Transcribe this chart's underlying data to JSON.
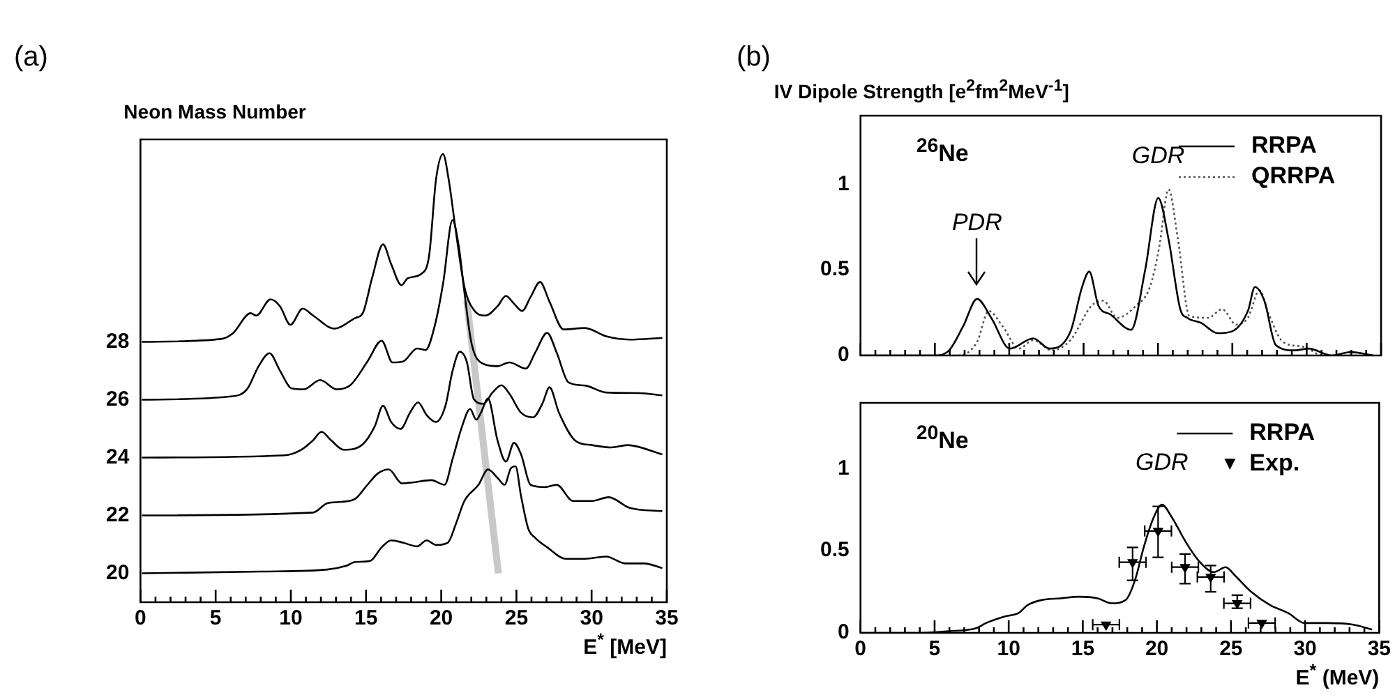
{
  "chart_data": [
    {
      "type": "line",
      "title": "(a)",
      "ylabel": "Neon Mass Number",
      "xlabel": "E$^{*}$ [MeV]",
      "xlim": [
        0,
        35
      ],
      "ylim": [
        19,
        35
      ],
      "xticks": [
        0,
        {
          "value": 1,
          "label": null
        },
        {
          "value": 2,
          "label": null
        },
        {
          "value": 3,
          "label": null
        },
        {
          "value": 4,
          "label": null
        },
        5,
        {
          "value": 6,
          "label": null
        },
        {
          "value": 7,
          "label": null
        },
        {
          "value": 8,
          "label": null
        },
        {
          "value": 9,
          "label": null
        },
        10,
        {
          "value": 11,
          "label": null
        },
        {
          "value": 12,
          "label": null
        },
        {
          "value": 13,
          "label": null
        },
        {
          "value": 14,
          "label": null
        },
        15,
        {
          "value": 16,
          "label": null
        },
        {
          "value": 17,
          "label": null
        },
        {
          "value": 18,
          "label": null
        },
        {
          "value": 19,
          "label": null
        },
        20,
        {
          "value": 21,
          "label": null
        },
        {
          "value": 22,
          "label": null
        },
        {
          "value": 23,
          "label": null
        },
        {
          "value": 24,
          "label": null
        },
        25,
        {
          "value": 26,
          "label": null
        },
        {
          "value": 27,
          "label": null
        },
        {
          "value": 28,
          "label": null
        },
        {
          "value": 29,
          "label": null
        },
        30,
        {
          "value": 31,
          "label": null
        },
        {
          "value": 32,
          "label": null
        },
        {
          "value": 33,
          "label": null
        },
        {
          "value": 34,
          "label": null
        },
        35
      ],
      "yticks": [
        20,
        22,
        24,
        26,
        28
      ],
      "grid": false,
      "legend": false,
      "series": [
        {
          "color": "#000000",
          "x": [
            0.1,
            5.35,
            6.13,
            7.33,
            7.7,
            8.65,
            9.28,
            9.97,
            10.79,
            11.48,
            12.9,
            14.3,
            14.78,
            15.4,
            16.13,
            16.67,
            17.36,
            17.77,
            18.7,
            19.2,
            19.65,
            20.12,
            20.5,
            20.97,
            21.54,
            22.17,
            22.95,
            23.74,
            24.3,
            24.84,
            25.38,
            25.94,
            26.57,
            27.2,
            28.14,
            29.56,
            30.97,
            32.54,
            34.7
          ],
          "values": [
            28.0,
            28.1,
            28.29,
            28.99,
            28.91,
            29.47,
            29.23,
            28.59,
            29.15,
            28.91,
            28.46,
            28.83,
            28.99,
            30.2,
            31.37,
            30.69,
            29.96,
            30.2,
            30.36,
            31.0,
            33.6,
            34.49,
            33.6,
            31.83,
            29.9,
            29.1,
            28.91,
            29.23,
            29.59,
            29.32,
            29.07,
            29.55,
            30.07,
            29.39,
            28.43,
            28.48,
            28.19,
            28.08,
            28.14
          ]
        },
        {
          "color": "#000000",
          "x": [
            0.1,
            6.13,
            7.08,
            7.86,
            8.58,
            9.28,
            10.06,
            10.85,
            11.95,
            13.05,
            13.99,
            15.09,
            16.04,
            16.76,
            17.45,
            18.4,
            18.96,
            19.59,
            20.13,
            20.75,
            21.16,
            21.54,
            22.01,
            22.8,
            23.74,
            24.53,
            25.63,
            26.26,
            27.04,
            27.67,
            28.46,
            29.56,
            30.97,
            33.17,
            34.7
          ],
          "values": [
            26.0,
            26.12,
            26.36,
            27.16,
            27.61,
            27.0,
            26.39,
            26.36,
            26.68,
            26.36,
            26.52,
            27.32,
            28.04,
            27.29,
            27.32,
            27.77,
            27.72,
            28.6,
            30.04,
            32.21,
            31.33,
            29.72,
            27.96,
            27.24,
            27.16,
            27.29,
            27.08,
            27.64,
            28.31,
            27.64,
            26.6,
            26.49,
            26.25,
            26.23,
            26.15
          ]
        },
        {
          "color": "#000000",
          "x": [
            0.1,
            9.59,
            10.69,
            11.48,
            12.04,
            12.67,
            13.52,
            14.78,
            15.57,
            16.13,
            16.67,
            17.3,
            17.92,
            18.46,
            19.03,
            19.65,
            20.28,
            20.75,
            21.23,
            21.7,
            22.17,
            22.8,
            23.43,
            24.0,
            24.53,
            25.31,
            26.1,
            26.73,
            27.2,
            27.83,
            28.93,
            30.03,
            31.29,
            32.39,
            34.7
          ],
          "values": [
            24.0,
            24.08,
            24.27,
            24.6,
            24.89,
            24.6,
            24.27,
            24.46,
            25.07,
            25.79,
            25.23,
            24.99,
            25.55,
            25.91,
            25.47,
            25.23,
            25.79,
            26.99,
            27.66,
            27.31,
            26.02,
            25.86,
            26.26,
            26.5,
            26.21,
            25.55,
            25.39,
            25.87,
            26.43,
            25.55,
            24.58,
            24.43,
            24.35,
            24.43,
            24.11
          ]
        },
        {
          "color": "#000000",
          "x": [
            0.1,
            11.48,
            12.42,
            13.36,
            14.3,
            15.09,
            15.81,
            16.51,
            17.39,
            18.08,
            19.34,
            20.22,
            20.75,
            21.38,
            21.92,
            22.33,
            22.64,
            23.11,
            23.74,
            24.3,
            24.84,
            25.31,
            25.94,
            26.89,
            27.67,
            28.77,
            30.03,
            31.13,
            32.54,
            34.7
          ],
          "values": [
            22.0,
            22.1,
            22.42,
            22.47,
            22.58,
            23.06,
            23.46,
            23.59,
            23.11,
            23.14,
            23.22,
            23.06,
            23.94,
            25.07,
            25.68,
            25.31,
            25.55,
            26.04,
            24.6,
            23.86,
            24.51,
            24.11,
            23.06,
            22.98,
            23.06,
            22.5,
            22.5,
            22.63,
            22.26,
            22.15
          ]
        },
        {
          "color": "#000000",
          "x": [
            0.1,
            8.02,
            12.42,
            13.68,
            14.3,
            15.25,
            16.04,
            16.67,
            17.45,
            18.4,
            19.03,
            19.65,
            20.44,
            20.97,
            21.54,
            22.48,
            23.11,
            23.74,
            24.21,
            24.62,
            24.94,
            25.31,
            25.79,
            26.26,
            27.04,
            28.3,
            29.56,
            30.97,
            32.23,
            33.49,
            34.7
          ],
          "values": [
            20.0,
            20.06,
            20.13,
            20.26,
            20.39,
            20.42,
            20.9,
            21.14,
            21.06,
            20.93,
            21.14,
            20.98,
            21.06,
            21.7,
            22.5,
            23.06,
            23.59,
            23.3,
            23.06,
            23.62,
            23.7,
            22.66,
            21.54,
            21.22,
            20.9,
            20.5,
            20.5,
            20.58,
            20.34,
            20.34,
            20.18
          ]
        },
        {
          "color": "#c8c8c8",
          "x": [
            21.7,
            23.8
          ],
          "values": [
            29.42,
            20.0
          ]
        }
      ]
    },
    {
      "type": "line",
      "title": "(b)",
      "ylabel": "IV Dipole Strength [e$^{2}$fm$^{2}$MeV$^{-1}$]",
      "xlim": [
        0,
        35
      ],
      "ylim": [
        0,
        1.4
      ],
      "tick_labels": "y",
      "xticks": [
        0,
        {
          "value": 1,
          "label": null
        },
        {
          "value": 2,
          "label": null
        },
        {
          "value": 3,
          "label": null
        },
        {
          "value": 4,
          "label": null
        },
        5,
        {
          "value": 6,
          "label": null
        },
        {
          "value": 7,
          "label": null
        },
        {
          "value": 8,
          "label": null
        },
        {
          "value": 9,
          "label": null
        },
        10,
        {
          "value": 11,
          "label": null
        },
        {
          "value": 12,
          "label": null
        },
        {
          "value": 13,
          "label": null
        },
        {
          "value": 14,
          "label": null
        },
        15,
        {
          "value": 16,
          "label": null
        },
        {
          "value": 17,
          "label": null
        },
        {
          "value": 18,
          "label": null
        },
        {
          "value": 19,
          "label": null
        },
        20,
        {
          "value": 21,
          "label": null
        },
        {
          "value": 22,
          "label": null
        },
        {
          "value": 23,
          "label": null
        },
        {
          "value": 24,
          "label": null
        },
        25,
        {
          "value": 26,
          "label": null
        },
        {
          "value": 27,
          "label": null
        },
        {
          "value": 28,
          "label": null
        },
        {
          "value": 29,
          "label": null
        },
        30,
        {
          "value": 31,
          "label": null
        },
        {
          "value": 32,
          "label": null
        },
        {
          "value": 33,
          "label": null
        },
        {
          "value": 34,
          "label": null
        },
        35
      ],
      "yticks": [
        0,
        0.5,
        1
      ],
      "grid": false,
      "legend": "top right",
      "annotations": [
        "$^{26}$Ne",
        {
          "text": "PDR",
          "x": 7.84,
          "y": 0.33
        },
        {
          "text": "GDR",
          "x": 20.02,
          "y": 0.92
        }
      ],
      "series": [
        {
          "name": "RRPA",
          "color": "#000000",
          "line_style": "solid",
          "x": [
            0,
            4.08,
            5.02,
            5.96,
            6.9,
            7.84,
            8.79,
            10.04,
            11.61,
            12.71,
            14.12,
            14.9,
            15.38,
            16.0,
            16.79,
            18.2,
            19.14,
            20.02,
            20.71,
            21.5,
            21.97,
            22.91,
            24.01,
            24.95,
            26.05,
            26.52,
            27.15,
            27.93,
            29.19,
            30.13,
            31.7,
            32.95,
            34.5
          ],
          "values": [
            0,
            0,
            0,
            0.03,
            0.17,
            0.33,
            0.22,
            0.04,
            0.1,
            0.04,
            0.14,
            0.4,
            0.49,
            0.29,
            0.24,
            0.15,
            0.5,
            0.92,
            0.68,
            0.27,
            0.22,
            0.19,
            0.13,
            0.14,
            0.26,
            0.4,
            0.32,
            0.06,
            0.03,
            0.04,
            0,
            0.02,
            0
          ]
        },
        {
          "name": "QRRPA",
          "color": "#555555",
          "line_style": "dotted",
          "x": [
            0,
            6.59,
            7.84,
            8.62,
            9.56,
            10.66,
            11.61,
            12.86,
            14.12,
            15.53,
            16.32,
            17.26,
            18.52,
            19.46,
            20.08,
            20.71,
            21.34,
            22.12,
            23.38,
            24.32,
            25.26,
            26.05,
            26.83,
            27.46,
            28.4,
            29.82,
            31.07,
            34.5
          ],
          "values": [
            0,
            0,
            0.08,
            0.26,
            0.17,
            0.04,
            0.09,
            0.03,
            0.09,
            0.29,
            0.32,
            0.22,
            0.29,
            0.4,
            0.63,
            0.97,
            0.68,
            0.23,
            0.22,
            0.27,
            0.18,
            0.22,
            0.38,
            0.24,
            0.08,
            0.05,
            0,
            0
          ]
        }
      ]
    },
    {
      "type": "line",
      "xlabel": "E$^{*}$ (MeV)",
      "xlim": [
        0,
        35
      ],
      "ylim": [
        0,
        1.4
      ],
      "xticks": [
        0,
        {
          "value": 1,
          "label": null
        },
        {
          "value": 2,
          "label": null
        },
        {
          "value": 3,
          "label": null
        },
        {
          "value": 4,
          "label": null
        },
        5,
        {
          "value": 6,
          "label": null
        },
        {
          "value": 7,
          "label": null
        },
        {
          "value": 8,
          "label": null
        },
        {
          "value": 9,
          "label": null
        },
        10,
        {
          "value": 11,
          "label": null
        },
        {
          "value": 12,
          "label": null
        },
        {
          "value": 13,
          "label": null
        },
        {
          "value": 14,
          "label": null
        },
        15,
        {
          "value": 16,
          "label": null
        },
        {
          "value": 17,
          "label": null
        },
        {
          "value": 18,
          "label": null
        },
        {
          "value": 19,
          "label": null
        },
        20,
        {
          "value": 21,
          "label": null
        },
        {
          "value": 22,
          "label": null
        },
        {
          "value": 23,
          "label": null
        },
        {
          "value": 24,
          "label": null
        },
        25,
        {
          "value": 26,
          "label": null
        },
        {
          "value": 27,
          "label": null
        },
        {
          "value": 28,
          "label": null
        },
        {
          "value": 29,
          "label": null
        },
        30,
        {
          "value": 31,
          "label": null
        },
        {
          "value": 32,
          "label": null
        },
        {
          "value": 33,
          "label": null
        },
        {
          "value": 34,
          "label": null
        },
        35
      ],
      "yticks": [
        0,
        0.5,
        1
      ],
      "grid": false,
      "legend": "top right",
      "annotations": [
        "$^{20}$Ne",
        {
          "text": "GDR",
          "x": 20.34,
          "y": 0.78
        }
      ],
      "series": [
        {
          "name": "RRPA",
          "color": "#000000",
          "line_style": "solid",
          "x": [
            0,
            4.08,
            5.96,
            7.84,
            8.47,
            9.73,
            10.66,
            11.29,
            12.23,
            13.49,
            14.74,
            16.0,
            16.95,
            17.89,
            18.52,
            19.14,
            19.77,
            20.34,
            21.03,
            21.97,
            22.91,
            23.85,
            24.64,
            25.26,
            26.36,
            27.62,
            28.87,
            29.97,
            31.38,
            33.26,
            34.52
          ],
          "values": [
            0,
            0,
            0.01,
            0.03,
            0.06,
            0.1,
            0.12,
            0.17,
            0.2,
            0.21,
            0.22,
            0.21,
            0.18,
            0.2,
            0.32,
            0.53,
            0.7,
            0.78,
            0.7,
            0.55,
            0.43,
            0.37,
            0.4,
            0.35,
            0.25,
            0.17,
            0.12,
            0.06,
            0.06,
            0.05,
            0.02
          ]
        },
        {
          "name": "Exp.",
          "type": "scatter",
          "marker": "triangle",
          "color": "#000000",
          "x": [
            16.57,
            18.36,
            20.08,
            21.9,
            23.63,
            25.42,
            27.08
          ],
          "values": [
            0.05,
            0.43,
            0.62,
            0.4,
            0.34,
            0.18,
            0.06
          ],
          "errors": [
            null,
            [
              0.32,
              0.52
            ],
            [
              0.46,
              0.77
            ],
            [
              0.3,
              0.48
            ],
            [
              0.25,
              0.41
            ],
            [
              0.15,
              0.23
            ],
            null
          ],
          "xerrors": [
            0.9,
            0.9,
            0.9,
            0.9,
            0.9,
            0.9,
            0.9
          ]
        }
      ]
    }
  ]
}
